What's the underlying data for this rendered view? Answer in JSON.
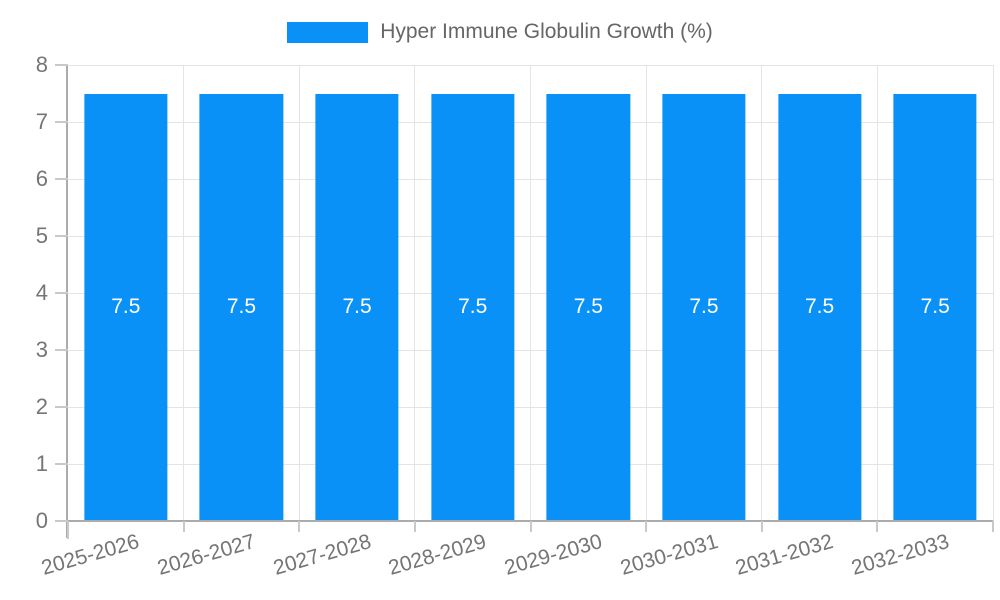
{
  "chart_data": {
    "type": "bar",
    "title": "",
    "xlabel": "",
    "ylabel": "",
    "categories": [
      "2025-2026",
      "2026-2027",
      "2027-2028",
      "2028-2029",
      "2029-2030",
      "2030-2031",
      "2031-2032",
      "2032-2033"
    ],
    "series": [
      {
        "name": "Hyper Immune Globulin Growth (%)",
        "color": "#0a91f7",
        "values": [
          7.5,
          7.5,
          7.5,
          7.5,
          7.5,
          7.5,
          7.5,
          7.5
        ],
        "value_labels": [
          "7.5",
          "7.5",
          "7.5",
          "7.5",
          "7.5",
          "7.5",
          "7.5",
          "7.5"
        ]
      }
    ],
    "ylim": [
      0,
      8
    ],
    "yticks": [
      0,
      1,
      2,
      3,
      4,
      5,
      6,
      7,
      8
    ],
    "grid": true,
    "legend_position": "top",
    "x_tick_rotation_deg": -16,
    "colors": {
      "bar": "#0a91f7",
      "grid": "#e4e4e4",
      "axis": "#ababab",
      "tick": "#c9c9c9",
      "tick_text": "#757575",
      "legend_text": "#666666",
      "value_text": "#ffffff"
    }
  }
}
